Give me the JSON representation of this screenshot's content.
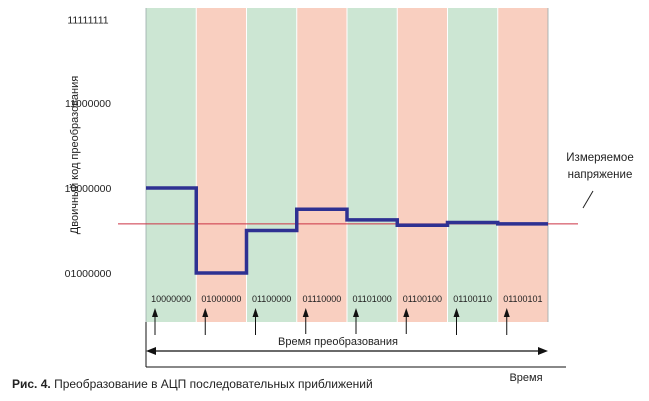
{
  "chart_data": {
    "type": "line",
    "title": "",
    "xlabel": "Время",
    "ylabel": "Двоичный код преобразования",
    "yticks": [
      "11111111",
      "11000000",
      "10000000",
      "01000000"
    ],
    "ytick_values": [
      255,
      192,
      128,
      64
    ],
    "ylim": [
      50,
      255
    ],
    "steps": 8,
    "step_codes": [
      "10000000",
      "01000000",
      "01100000",
      "01110000",
      "01101000",
      "01100100",
      "01100110",
      "01100101"
    ],
    "step_colors": [
      "#cce6d3",
      "#f9cfc0",
      "#cce6d3",
      "#f9cfc0",
      "#cce6d3",
      "#f9cfc0",
      "#cce6d3",
      "#f9cfc0"
    ],
    "series": [
      {
        "values": [
          128,
          64,
          96,
          112,
          104,
          100,
          102,
          101
        ],
        "color": "#2e3192"
      }
    ],
    "measured_voltage": 101,
    "measured_color": "#cc3344",
    "measured_label_line1": "Измеряемое",
    "measured_label_line2": "напряжение",
    "conversion_time_label": "Время преобразования"
  },
  "caption": {
    "figure": "Рис. 4.",
    "text": " Преобразование в АЦП последовательных приближений"
  }
}
